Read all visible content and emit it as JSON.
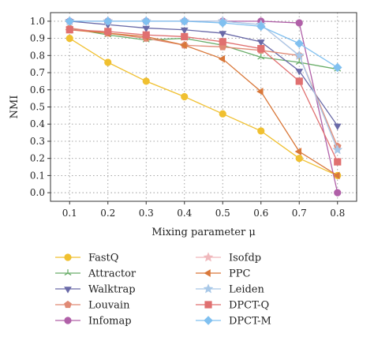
{
  "chart_data": {
    "type": "line",
    "xlabel": "Mixing parameter μ",
    "ylabel": "NMI",
    "x": [
      0.1,
      0.2,
      0.3,
      0.4,
      0.5,
      0.6,
      0.7,
      0.8
    ],
    "xlim": [
      0.05,
      0.85
    ],
    "ylim": [
      -0.05,
      1.05
    ],
    "yticks": [
      0.0,
      0.1,
      0.2,
      0.3,
      0.4,
      0.5,
      0.6,
      0.7,
      0.8,
      0.9,
      1.0
    ],
    "xtick_labels": [
      "0.1",
      "0.2",
      "0.3",
      "0.4",
      "0.5",
      "0.6",
      "0.7",
      "0.8"
    ],
    "ytick_labels": [
      "0.0",
      "0.1",
      "0.2",
      "0.3",
      "0.4",
      "0.5",
      "0.6",
      "0.7",
      "0.8",
      "0.9",
      "1.0"
    ],
    "grid": true,
    "legend_position": "bottom",
    "series": [
      {
        "name": "FastQ",
        "color": "#f0c030",
        "marker": "circle",
        "values": [
          0.9,
          0.76,
          0.65,
          0.56,
          0.46,
          0.36,
          0.2,
          0.1
        ]
      },
      {
        "name": "Attractor",
        "color": "#6aae6a",
        "marker": "tri-star",
        "values": [
          0.96,
          0.92,
          0.89,
          0.9,
          0.86,
          0.79,
          0.76,
          0.72
        ]
      },
      {
        "name": "Walktrap",
        "color": "#6a6aa8",
        "marker": "triangle-down",
        "values": [
          1.0,
          0.98,
          0.96,
          0.95,
          0.93,
          0.88,
          0.71,
          0.39
        ]
      },
      {
        "name": "Louvain",
        "color": "#e08a75",
        "marker": "pentagon",
        "values": [
          0.96,
          0.93,
          0.9,
          0.86,
          0.85,
          0.83,
          0.8,
          0.27
        ]
      },
      {
        "name": "Infomap",
        "color": "#b060a8",
        "marker": "circle",
        "values": [
          1.0,
          1.0,
          1.0,
          1.0,
          1.0,
          1.0,
          0.99,
          0.0
        ]
      },
      {
        "name": "Isofdp",
        "color": "#f0b8bc",
        "marker": "star",
        "values": [
          1.0,
          1.0,
          1.0,
          1.0,
          1.0,
          0.98,
          0.8,
          0.25
        ]
      },
      {
        "name": "PPC",
        "color": "#d9783a",
        "marker": "triangle-left",
        "values": [
          0.95,
          0.93,
          0.91,
          0.86,
          0.78,
          0.59,
          0.24,
          0.1
        ]
      },
      {
        "name": "Leiden",
        "color": "#a8c8e8",
        "marker": "star",
        "values": [
          1.0,
          1.0,
          1.0,
          1.0,
          1.0,
          0.98,
          0.8,
          0.25
        ]
      },
      {
        "name": "DPCT-Q",
        "color": "#e07070",
        "marker": "square",
        "values": [
          0.95,
          0.94,
          0.92,
          0.91,
          0.88,
          0.84,
          0.65,
          0.18
        ]
      },
      {
        "name": "DPCT-M",
        "color": "#80c0f0",
        "marker": "diamond",
        "values": [
          1.0,
          1.0,
          1.0,
          1.0,
          0.99,
          0.97,
          0.87,
          0.73
        ]
      }
    ]
  }
}
